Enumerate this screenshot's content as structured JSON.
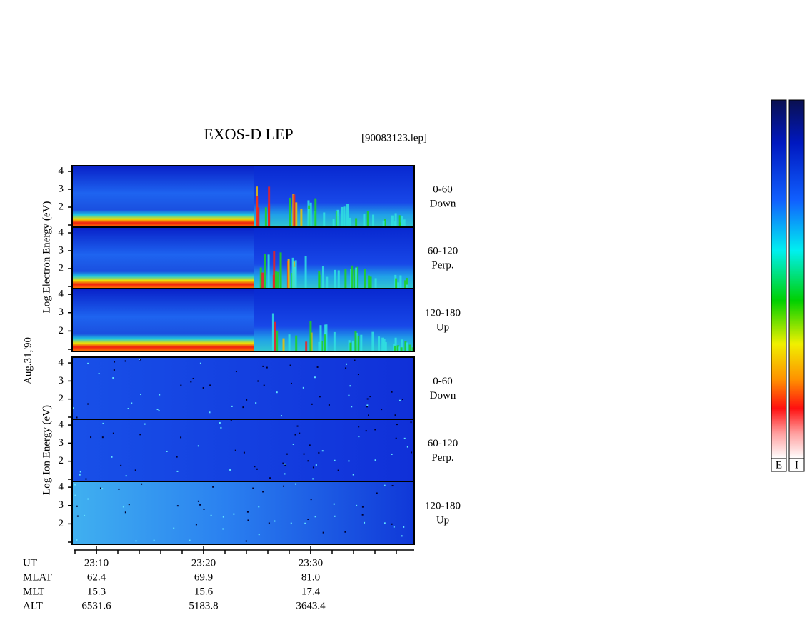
{
  "title": "EXOS-D LEP",
  "file": "[90083123.lep]",
  "date": "Aug.31,'90",
  "electron_axis_label": "Log  Electron  Energy (eV)",
  "ion_axis_label": "Log  Ion  Energy (eV)",
  "panels": [
    {
      "species": "electron",
      "pitch": "0-60",
      "direction": "Down",
      "ylim": [
        1,
        4.2
      ],
      "yticks": [
        2,
        3,
        4
      ]
    },
    {
      "species": "electron",
      "pitch": "60-120",
      "direction": "Perp.",
      "ylim": [
        1,
        4.2
      ],
      "yticks": [
        2,
        3,
        4
      ]
    },
    {
      "species": "electron",
      "pitch": "120-180",
      "direction": "Up",
      "ylim": [
        1,
        4.2
      ],
      "yticks": [
        2,
        3,
        4
      ]
    },
    {
      "species": "ion",
      "pitch": "0-60",
      "direction": "Down",
      "ylim": [
        1,
        4.2
      ],
      "yticks": [
        2,
        3,
        4
      ]
    },
    {
      "species": "ion",
      "pitch": "60-120",
      "direction": "Perp.",
      "ylim": [
        1,
        4.2
      ],
      "yticks": [
        2,
        3,
        4
      ]
    },
    {
      "species": "ion",
      "pitch": "120-180",
      "direction": "Up",
      "ylim": [
        1,
        4.2
      ],
      "yticks": [
        2,
        3,
        4
      ]
    }
  ],
  "orbit_table": [
    {
      "name": "UT",
      "values": [
        "23:10",
        "23:20",
        "23:30"
      ]
    },
    {
      "name": "MLAT",
      "values": [
        "62.4",
        "69.9",
        "81.0"
      ]
    },
    {
      "name": "MLT",
      "values": [
        "15.3",
        "15.6",
        "17.4"
      ]
    },
    {
      "name": "ALT",
      "values": [
        "6531.6",
        "5183.8",
        "3643.4"
      ]
    }
  ],
  "colorbar_labels": [
    "E",
    "I"
  ]
}
